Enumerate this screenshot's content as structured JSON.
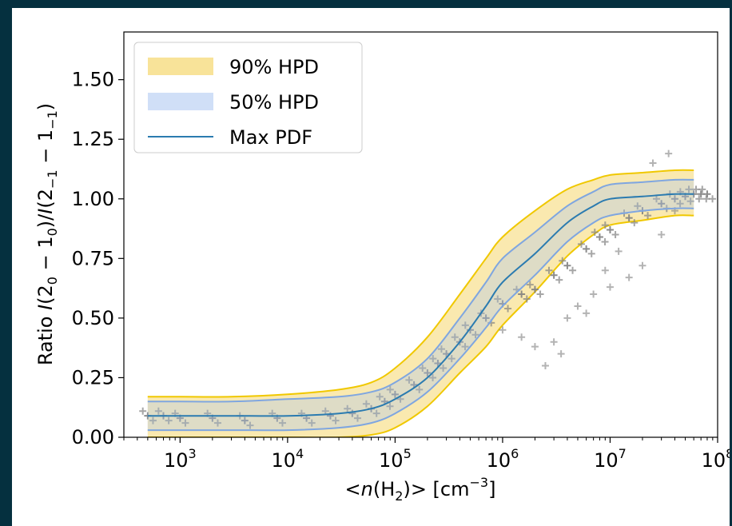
{
  "chart_data": {
    "type": "line",
    "title": "",
    "xlabel": "<n(H2)> [cm^-3]",
    "ylabel": "Ratio I(2_0 − 1_0)/I(2_−1 − 1_−1)",
    "xscale": "log",
    "xlim": [
      300,
      100000000
    ],
    "ylim": [
      0,
      1.7
    ],
    "grid": false,
    "legend_position": "top-left",
    "xticks": [
      {
        "value": 1000,
        "base": "10",
        "exp": "3"
      },
      {
        "value": 10000,
        "base": "10",
        "exp": "4"
      },
      {
        "value": 100000,
        "base": "10",
        "exp": "5"
      },
      {
        "value": 1000000,
        "base": "10",
        "exp": "6"
      },
      {
        "value": 10000000,
        "base": "10",
        "exp": "7"
      },
      {
        "value": 100000000,
        "base": "10",
        "exp": "8"
      }
    ],
    "yticks": [
      {
        "value": 0.0,
        "label": "0.00"
      },
      {
        "value": 0.25,
        "label": "0.25"
      },
      {
        "value": 0.5,
        "label": "0.50"
      },
      {
        "value": 0.75,
        "label": "0.75"
      },
      {
        "value": 1.0,
        "label": "1.00"
      },
      {
        "value": 1.25,
        "label": "1.25"
      },
      {
        "value": 1.5,
        "label": "1.50"
      }
    ],
    "x": [
      500,
      1000,
      3000,
      10000,
      30000,
      60000,
      100000,
      200000,
      400000,
      700000,
      1000000,
      2000000,
      4000000,
      7000000,
      10000000,
      20000000,
      40000000,
      60000000
    ],
    "series": [
      {
        "name": "Max PDF",
        "kind": "line",
        "color": "#2b7bb0",
        "values": [
          0.09,
          0.09,
          0.09,
          0.09,
          0.1,
          0.12,
          0.16,
          0.25,
          0.4,
          0.55,
          0.65,
          0.77,
          0.9,
          0.97,
          1.0,
          1.01,
          1.02,
          1.02
        ]
      },
      {
        "name": "50% HPD",
        "kind": "band",
        "color": "#aac5f0",
        "lower": [
          0.03,
          0.03,
          0.03,
          0.03,
          0.04,
          0.06,
          0.1,
          0.19,
          0.33,
          0.46,
          0.55,
          0.68,
          0.82,
          0.9,
          0.93,
          0.95,
          0.96,
          0.96
        ],
        "upper": [
          0.15,
          0.15,
          0.15,
          0.16,
          0.17,
          0.19,
          0.23,
          0.33,
          0.5,
          0.65,
          0.75,
          0.86,
          0.97,
          1.03,
          1.06,
          1.07,
          1.08,
          1.08
        ]
      },
      {
        "name": "90% HPD",
        "kind": "band",
        "color": "#f5d76e",
        "lower": [
          0.0,
          0.0,
          0.0,
          0.0,
          0.0,
          0.01,
          0.04,
          0.13,
          0.27,
          0.38,
          0.47,
          0.61,
          0.76,
          0.85,
          0.89,
          0.91,
          0.93,
          0.93
        ],
        "upper": [
          0.17,
          0.17,
          0.17,
          0.18,
          0.2,
          0.23,
          0.29,
          0.42,
          0.6,
          0.75,
          0.84,
          0.95,
          1.04,
          1.08,
          1.1,
          1.11,
          1.12,
          1.12
        ]
      }
    ],
    "scatter_observations": {
      "name": "observed ratios",
      "color": "#808080",
      "marker": "+",
      "x": [
        500,
        700,
        1000,
        2000,
        4000,
        8000,
        15000,
        25000,
        40000,
        60000,
        80000,
        100000,
        150000,
        200000,
        250000,
        300000,
        400000,
        500000,
        700000,
        1000000,
        1500000,
        2000000,
        3000000,
        4000000,
        6000000,
        8000000,
        10000000,
        15000000,
        20000000,
        30000000,
        40000000,
        50000000,
        60000000,
        70000000,
        80000000
      ],
      "y": [
        0.09,
        0.09,
        0.08,
        0.08,
        0.07,
        0.08,
        0.08,
        0.09,
        0.1,
        0.12,
        0.15,
        0.18,
        0.22,
        0.27,
        0.31,
        0.35,
        0.4,
        0.45,
        0.5,
        0.56,
        0.6,
        0.62,
        0.68,
        0.72,
        0.79,
        0.84,
        0.87,
        0.92,
        0.95,
        0.98,
        1.0,
        1.01,
        1.02,
        1.02,
        1.02
      ]
    },
    "scatter_outliers": {
      "x": [
        1000000,
        1500000,
        2000000,
        3000000,
        4000000,
        5000000,
        7000000,
        10000000,
        15000000,
        20000000,
        30000000,
        40000000,
        2500000,
        3500000,
        6000000,
        9000000,
        12000000,
        25000000,
        35000000
      ],
      "y": [
        0.45,
        0.42,
        0.38,
        0.4,
        0.5,
        0.55,
        0.6,
        0.63,
        0.67,
        0.72,
        0.85,
        0.95,
        0.3,
        0.35,
        0.52,
        0.7,
        0.78,
        1.15,
        1.19
      ]
    }
  }
}
